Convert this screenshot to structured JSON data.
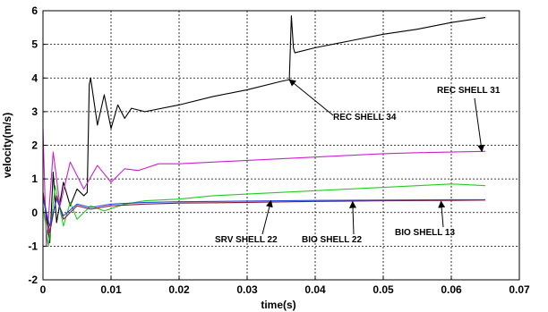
{
  "chart_data": {
    "type": "line",
    "xlabel": "time(s)",
    "ylabel": "velocity(m/s)",
    "xlim": [
      0,
      0.07
    ],
    "ylim": [
      -2,
      6
    ],
    "xticks": [
      "0",
      "0.01",
      "0.02",
      "0.03",
      "0.04",
      "0.05",
      "0.06",
      "0.07"
    ],
    "yticks": [
      "-2",
      "-1",
      "0",
      "1",
      "2",
      "3",
      "4",
      "5",
      "6"
    ],
    "grid": true,
    "series": [
      {
        "name": "REC SHELL 34",
        "color": "#000000",
        "x": [
          0,
          0.001,
          0.0015,
          0.002,
          0.003,
          0.004,
          0.005,
          0.006,
          0.0065,
          0.0068,
          0.007,
          0.008,
          0.009,
          0.01,
          0.011,
          0.012,
          0.013,
          0.015,
          0.02,
          0.025,
          0.03,
          0.035,
          0.0362,
          0.0365,
          0.0368,
          0.037,
          0.04,
          0.045,
          0.05,
          0.055,
          0.06,
          0.065
        ],
        "y": [
          0.6,
          -0.9,
          1.2,
          -0.3,
          0.9,
          0.2,
          0.7,
          0.5,
          0.6,
          3.8,
          4.0,
          2.6,
          3.5,
          2.5,
          3.2,
          2.8,
          3.1,
          3.0,
          3.2,
          3.45,
          3.65,
          3.9,
          3.95,
          5.85,
          4.9,
          4.75,
          4.9,
          5.1,
          5.3,
          5.45,
          5.65,
          5.8
        ]
      },
      {
        "name": "REC SHELL 31",
        "color": "#cc22cc",
        "x": [
          0,
          0.0005,
          0.0015,
          0.0025,
          0.004,
          0.006,
          0.008,
          0.01,
          0.012,
          0.014,
          0.017,
          0.02,
          0.025,
          0.03,
          0.035,
          0.04,
          0.045,
          0.05,
          0.055,
          0.06,
          0.065
        ],
        "y": [
          2.5,
          -1.0,
          1.8,
          0.2,
          1.5,
          0.7,
          1.4,
          0.9,
          1.3,
          1.25,
          1.45,
          1.45,
          1.5,
          1.55,
          1.6,
          1.65,
          1.7,
          1.75,
          1.78,
          1.8,
          1.82
        ]
      },
      {
        "name": "SRV SHELL 22",
        "color": "#22cc22",
        "x": [
          0,
          0.0008,
          0.0018,
          0.003,
          0.004,
          0.005,
          0.007,
          0.009,
          0.012,
          0.015,
          0.02,
          0.025,
          0.03,
          0.035,
          0.04,
          0.045,
          0.05,
          0.055,
          0.06,
          0.065
        ],
        "y": [
          0.2,
          -1.0,
          0.8,
          -0.4,
          0.3,
          -0.2,
          0.2,
          0.05,
          0.25,
          0.35,
          0.4,
          0.5,
          0.55,
          0.6,
          0.65,
          0.7,
          0.75,
          0.8,
          0.85,
          0.8
        ]
      },
      {
        "name": "BIO SHELL 22",
        "color": "#8b1a3a",
        "x": [
          0,
          0.001,
          0.002,
          0.003,
          0.005,
          0.007,
          0.01,
          0.015,
          0.02,
          0.03,
          0.04,
          0.05,
          0.06,
          0.065
        ],
        "y": [
          0.6,
          -0.6,
          0.5,
          -0.2,
          0.2,
          0.1,
          0.2,
          0.25,
          0.28,
          0.3,
          0.33,
          0.35,
          0.36,
          0.37
        ]
      },
      {
        "name": "BIO SHELL 13",
        "color": "#2244dd",
        "x": [
          0,
          0.001,
          0.002,
          0.003,
          0.005,
          0.007,
          0.01,
          0.015,
          0.02,
          0.03,
          0.04,
          0.05,
          0.06,
          0.065
        ],
        "y": [
          0.4,
          -0.4,
          0.4,
          -0.1,
          0.25,
          0.15,
          0.25,
          0.3,
          0.32,
          0.34,
          0.36,
          0.37,
          0.38,
          0.38
        ]
      }
    ],
    "annotations": [
      {
        "label": "REC SHELL 34",
        "target": [
          0.0362,
          3.95
        ]
      },
      {
        "label": "REC SHELL 31",
        "target": [
          0.0645,
          1.82
        ]
      },
      {
        "label": "SRV SHELL 22",
        "target": [
          0.0335,
          0.35
        ]
      },
      {
        "label": "BIO SHELL 22",
        "target": [
          0.0455,
          0.32
        ]
      },
      {
        "label": "BIO SHELL 13",
        "target": [
          0.0585,
          0.33
        ]
      }
    ]
  }
}
